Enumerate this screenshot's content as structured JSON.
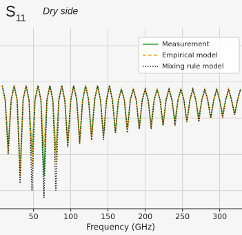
{
  "chart_data": {
    "type": "line",
    "panel_label": "S",
    "panel_subscript": "11",
    "title": "Dry side",
    "x_label": "Frequency (GHz)",
    "x": [
      8,
      12,
      16,
      20,
      24,
      28,
      32,
      36,
      40,
      44,
      48,
      52,
      56,
      60,
      64,
      68,
      72,
      76,
      80,
      84,
      88,
      92,
      96,
      100,
      104,
      108,
      112,
      116,
      120,
      124,
      128,
      132,
      136,
      140,
      144,
      148,
      152,
      156,
      160,
      164,
      168,
      172,
      176,
      180,
      184,
      188,
      192,
      196,
      200,
      204,
      208,
      212,
      216,
      220,
      224,
      228,
      232,
      236,
      240,
      244,
      248,
      252,
      256,
      260,
      264,
      268,
      272,
      276,
      280,
      284,
      288,
      292,
      296,
      300,
      304,
      308,
      312,
      316,
      320,
      324,
      328
    ],
    "series": [
      {
        "name": "Measurement",
        "color": "#2ca02c",
        "style": "solid",
        "values": [
          -11,
          -15,
          -28,
          -15,
          -11,
          -15,
          -34,
          -15,
          -11,
          -15,
          -30,
          -15,
          -11,
          -15,
          -36,
          -15,
          -11,
          -15,
          -30,
          -15,
          -11,
          -15,
          -27,
          -15,
          -11,
          -15,
          -26,
          -15,
          -11,
          -15,
          -25,
          -15,
          -11,
          -15,
          -25,
          -15,
          -11,
          -15,
          -24,
          -15,
          -12,
          -15,
          -23,
          -15,
          -12,
          -15,
          -23,
          -15,
          -12,
          -15,
          -22,
          -15,
          -12,
          -15,
          -22,
          -15,
          -12,
          -15,
          -21,
          -15,
          -12,
          -15,
          -21,
          -15,
          -12,
          -15,
          -20,
          -15,
          -12,
          -15,
          -20,
          -15,
          -12,
          -15,
          -19,
          -15,
          -12,
          -15,
          -19,
          -15,
          -12
        ]
      },
      {
        "name": "Empirical model",
        "color": "#ff9f1a",
        "style": "dashed",
        "values": [
          -11,
          -15,
          -30,
          -15,
          -11,
          -15,
          -36,
          -15,
          -11,
          -15,
          -33,
          -15,
          -11,
          -15,
          -28,
          -15,
          -11,
          -15,
          -32,
          -15,
          -11,
          -15,
          -28,
          -15,
          -11,
          -15,
          -27,
          -15,
          -11,
          -15,
          -26,
          -15,
          -11,
          -15,
          -25,
          -15,
          -11,
          -15,
          -24,
          -15,
          -12,
          -15,
          -24,
          -15,
          -12,
          -15,
          -23,
          -15,
          -12,
          -15,
          -23,
          -15,
          -12,
          -15,
          -22,
          -15,
          -12,
          -15,
          -22,
          -15,
          -12,
          -15,
          -21,
          -15,
          -12,
          -15,
          -21,
          -15,
          -12,
          -15,
          -20,
          -15,
          -12,
          -15,
          -20,
          -15,
          -12,
          -15,
          -19,
          -15,
          -12
        ]
      },
      {
        "name": "Mixing rule model",
        "color": "#222222",
        "style": "dotted",
        "values": [
          -11,
          -15,
          -30,
          -15,
          -11,
          -15,
          -38,
          -15,
          -11,
          -15,
          -40,
          -15,
          -11,
          -15,
          -42,
          -15,
          -11,
          -15,
          -40,
          -15,
          -11,
          -15,
          -28,
          -15,
          -11,
          -15,
          -27,
          -15,
          -11,
          -15,
          -26,
          -15,
          -11,
          -15,
          -26,
          -15,
          -11,
          -15,
          -24,
          -15,
          -12,
          -15,
          -24,
          -15,
          -12,
          -15,
          -23,
          -15,
          -12,
          -15,
          -23,
          -15,
          -12,
          -15,
          -22,
          -15,
          -12,
          -15,
          -22,
          -15,
          -12,
          -15,
          -21,
          -15,
          -12,
          -15,
          -21,
          -15,
          -12,
          -15,
          -20,
          -15,
          -12,
          -15,
          -20,
          -15,
          -12,
          -15,
          -19,
          -15,
          -12
        ]
      }
    ],
    "xlim": [
      5,
      330
    ],
    "xticks": [
      50,
      100,
      150,
      200,
      250,
      300
    ],
    "ylim": [
      -45,
      5
    ],
    "yticks": [
      -40,
      -30,
      -20,
      -10,
      0
    ],
    "grid": true,
    "legend": "upper right"
  }
}
